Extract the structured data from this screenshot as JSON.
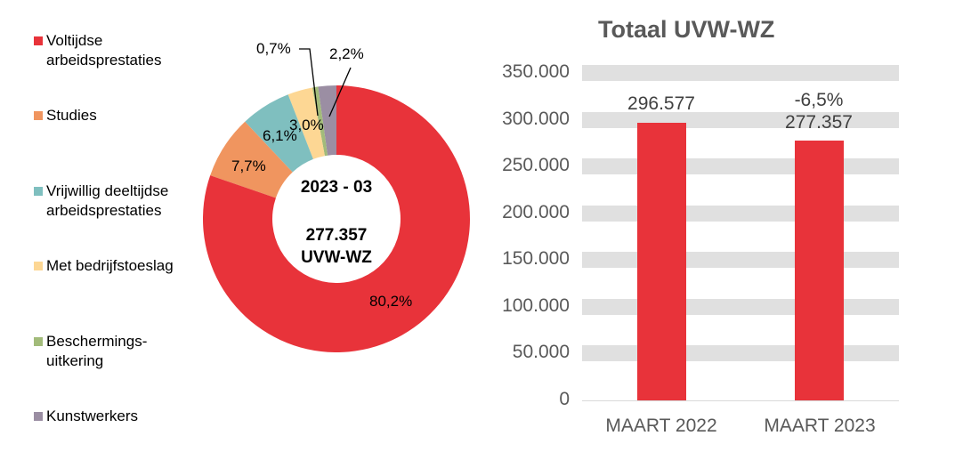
{
  "chart_data": [
    {
      "type": "pie",
      "donut": true,
      "center_text": [
        "2023 - 03",
        "277.357",
        "UVW-WZ"
      ],
      "categories": [
        "Voltijdse arbeidsprestaties",
        "Studies",
        "Vrijwillig deeltijdse arbeidsprestaties",
        "Met bedrijfstoeslag",
        "Beschermings-uitkering",
        "Kunstwerkers"
      ],
      "legend_lines": [
        [
          "Voltijdse",
          "arbeidsprestaties"
        ],
        [
          "Studies"
        ],
        [
          "Vrijwillig deeltijdse",
          "arbeidsprestaties"
        ],
        [
          "Met bedrijfstoeslag"
        ],
        [
          "Beschermings-",
          "uitkering"
        ],
        [
          "Kunstwerkers"
        ]
      ],
      "values": [
        80.2,
        7.7,
        6.1,
        3.0,
        0.7,
        2.2
      ],
      "labels": [
        "80,2%",
        "7,7%",
        "6,1%",
        "3,0%",
        "0,7%",
        "2,2%"
      ],
      "colors": [
        "#e8333a",
        "#f0955f",
        "#7fbfbf",
        "#fdd794",
        "#a2bb7a",
        "#9b8ea3"
      ],
      "legend": "left"
    },
    {
      "type": "bar",
      "title": "Totaal UVW-WZ",
      "categories": [
        "MAART 2022",
        "MAART 2023"
      ],
      "values": [
        296577,
        277357
      ],
      "data_labels": [
        "296.577",
        "277.357"
      ],
      "annotation": "-6,5%",
      "color": "#e8333a",
      "ylim": [
        0,
        350000
      ],
      "yticks": [
        "0",
        "50.000",
        "100.000",
        "150.000",
        "200.000",
        "250.000",
        "300.000",
        "350.000"
      ],
      "grid": true
    }
  ]
}
